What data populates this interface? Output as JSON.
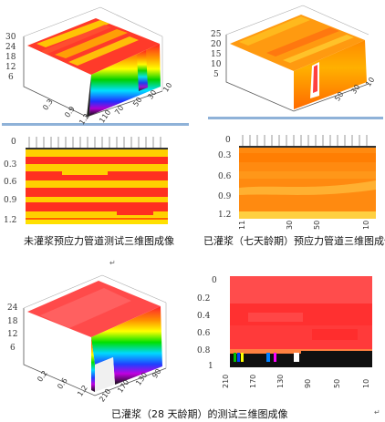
{
  "panels": {
    "p1": {
      "y_ticks": [
        "30",
        "24",
        "18",
        "12",
        "6"
      ],
      "x_ticks": [
        "0.3",
        "0.9",
        "1.2"
      ],
      "z_ticks": [
        "110",
        "70",
        "50",
        "30",
        "10"
      ]
    },
    "p2": {
      "y_ticks": [
        "25",
        "20",
        "15",
        "10",
        "5"
      ],
      "z_ticks": [
        "50",
        "30",
        "10"
      ]
    },
    "p3": {
      "y_ticks": [
        "0",
        "0.3",
        "0.6",
        "0.9",
        "1.2"
      ]
    },
    "p4": {
      "y_ticks": [
        "0",
        "0.3",
        "0.6",
        "0.9",
        "1.2"
      ],
      "x_ticks": [
        "11",
        "30",
        "50",
        "10"
      ]
    },
    "p5": {
      "y_ticks": [
        "24",
        "18",
        "12",
        "6"
      ],
      "x_ticks": [
        "0.2",
        "0.6",
        "1.2",
        "210",
        "170",
        "130",
        "90"
      ]
    },
    "p6": {
      "y_ticks": [
        "0",
        "0.2",
        "0.4",
        "0.6",
        "0.8",
        "1"
      ],
      "x_ticks": [
        "210",
        "170",
        "130",
        "90",
        "50",
        "10"
      ]
    }
  },
  "captions": {
    "top_left": "未灌浆预应力管道测试三维图成像",
    "top_right": "已灌浆（七天龄期）预应力管道三维图成像",
    "bottom": "已灌浆（28 天龄期）的测试三维图成像"
  },
  "marks": {
    "paragraph": "↵"
  }
}
